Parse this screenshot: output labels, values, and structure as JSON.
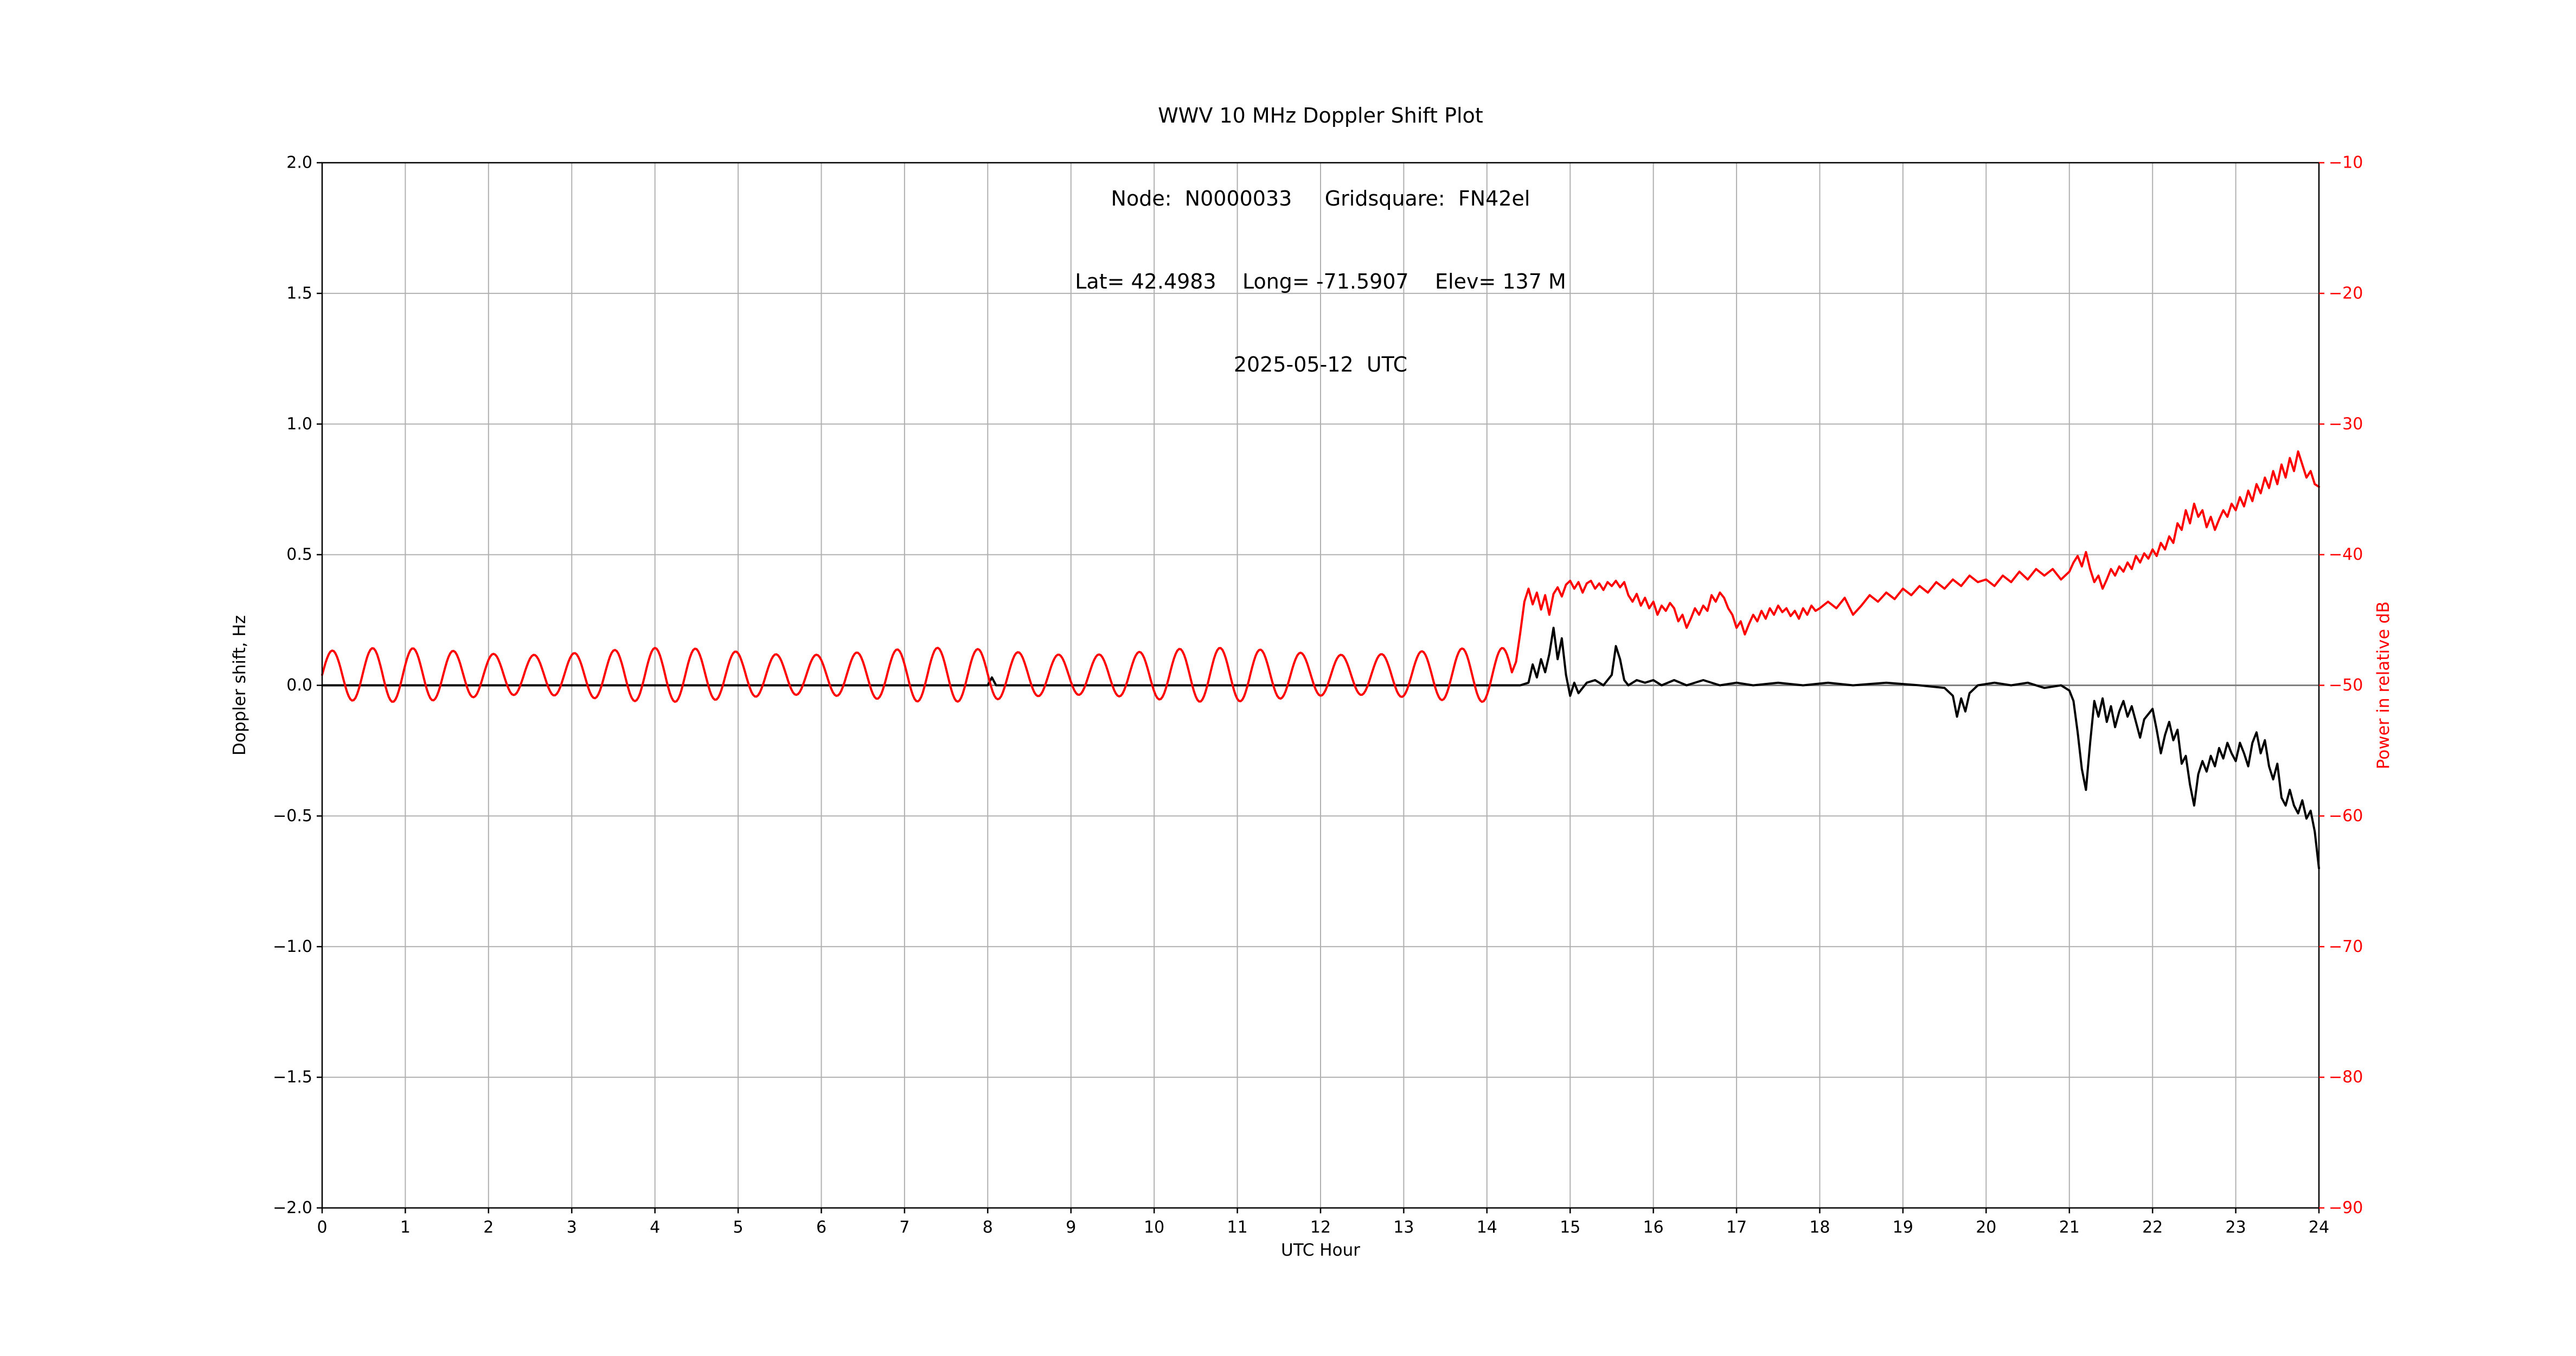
{
  "title_block": {
    "line1": "WWV 10 MHz Doppler Shift Plot",
    "line2": "Node:  N0000033     Gridsquare:  FN42el",
    "line3": "Lat= 42.4983    Long= -71.5907    Elev= 137 M",
    "line4": "2025-05-12  UTC"
  },
  "chart_data": {
    "type": "line",
    "title": "WWV 10 MHz Doppler Shift Plot",
    "subtitle": [
      "Node:  N0000033     Gridsquare:  FN42el",
      "Lat= 42.4983    Long= -71.5907    Elev= 137 M",
      "2025-05-12  UTC"
    ],
    "xlabel": "UTC Hour",
    "xlim": [
      0,
      24
    ],
    "x_ticks": [
      0,
      1,
      2,
      3,
      4,
      5,
      6,
      7,
      8,
      9,
      10,
      11,
      12,
      13,
      14,
      15,
      16,
      17,
      18,
      19,
      20,
      21,
      22,
      23,
      24
    ],
    "x_tick_labels": [
      "0",
      "1",
      "2",
      "3",
      "4",
      "5",
      "6",
      "7",
      "8",
      "9",
      "10",
      "11",
      "12",
      "13",
      "14",
      "15",
      "16",
      "17",
      "18",
      "19",
      "20",
      "21",
      "22",
      "23",
      "24"
    ],
    "grid": true,
    "grid_color": "#b0b0b0",
    "background": "#ffffff",
    "left_axis": {
      "label": "Doppler shift, Hz",
      "lim": [
        -2.0,
        2.0
      ],
      "tick_values": [
        2.0,
        1.5,
        1.0,
        0.5,
        0.0,
        -0.5,
        -1.0,
        -1.5,
        -2.0
      ],
      "tick_labels": [
        "2.0",
        "1.5",
        "1.0",
        "0.5",
        "0.0",
        "−0.5",
        "−1.0",
        "−1.5",
        "−2.0"
      ],
      "color": "#000000"
    },
    "right_axis": {
      "label": "Power in relative dB",
      "lim": [
        -90,
        -10
      ],
      "tick_values": [
        -10,
        -20,
        -30,
        -40,
        -50,
        -60,
        -70,
        -80,
        -90
      ],
      "tick_labels": [
        "−10",
        "−20",
        "−30",
        "−40",
        "−50",
        "−60",
        "−70",
        "−80",
        "−90"
      ],
      "color": "#ff0000"
    },
    "zero_line": {
      "axis": "left",
      "value": 0,
      "color": "#808080"
    },
    "series": [
      {
        "name": "doppler-shift",
        "axis": "left",
        "color": "#000000",
        "points": [
          [
            0,
            0
          ],
          [
            8,
            0
          ],
          [
            8.05,
            0.03
          ],
          [
            8.1,
            0
          ],
          [
            14.4,
            0
          ],
          [
            14.5,
            0.01
          ],
          [
            14.55,
            0.08
          ],
          [
            14.6,
            0.03
          ],
          [
            14.65,
            0.1
          ],
          [
            14.7,
            0.05
          ],
          [
            14.75,
            0.12
          ],
          [
            14.8,
            0.22
          ],
          [
            14.85,
            0.1
          ],
          [
            14.9,
            0.18
          ],
          [
            14.95,
            0.04
          ],
          [
            15,
            -0.04
          ],
          [
            15.05,
            0.01
          ],
          [
            15.1,
            -0.03
          ],
          [
            15.2,
            0.01
          ],
          [
            15.3,
            0.02
          ],
          [
            15.4,
            0
          ],
          [
            15.5,
            0.04
          ],
          [
            15.55,
            0.15
          ],
          [
            15.6,
            0.1
          ],
          [
            15.65,
            0.02
          ],
          [
            15.7,
            0
          ],
          [
            15.8,
            0.02
          ],
          [
            15.9,
            0.01
          ],
          [
            16,
            0.02
          ],
          [
            16.1,
            0
          ],
          [
            16.25,
            0.02
          ],
          [
            16.4,
            0
          ],
          [
            16.6,
            0.02
          ],
          [
            16.8,
            0
          ],
          [
            17,
            0.01
          ],
          [
            17.2,
            0
          ],
          [
            17.5,
            0.01
          ],
          [
            17.8,
            0
          ],
          [
            18.1,
            0.01
          ],
          [
            18.4,
            0
          ],
          [
            18.8,
            0.01
          ],
          [
            19.2,
            0
          ],
          [
            19.5,
            -0.01
          ],
          [
            19.6,
            -0.04
          ],
          [
            19.65,
            -0.12
          ],
          [
            19.7,
            -0.05
          ],
          [
            19.75,
            -0.1
          ],
          [
            19.8,
            -0.03
          ],
          [
            19.9,
            0
          ],
          [
            20.1,
            0.01
          ],
          [
            20.3,
            0
          ],
          [
            20.5,
            0.01
          ],
          [
            20.7,
            -0.01
          ],
          [
            20.9,
            0
          ],
          [
            21,
            -0.02
          ],
          [
            21.05,
            -0.06
          ],
          [
            21.1,
            -0.18
          ],
          [
            21.15,
            -0.32
          ],
          [
            21.2,
            -0.4
          ],
          [
            21.25,
            -0.22
          ],
          [
            21.3,
            -0.06
          ],
          [
            21.35,
            -0.12
          ],
          [
            21.4,
            -0.05
          ],
          [
            21.45,
            -0.14
          ],
          [
            21.5,
            -0.08
          ],
          [
            21.55,
            -0.16
          ],
          [
            21.6,
            -0.1
          ],
          [
            21.65,
            -0.06
          ],
          [
            21.7,
            -0.12
          ],
          [
            21.75,
            -0.08
          ],
          [
            21.8,
            -0.14
          ],
          [
            21.85,
            -0.2
          ],
          [
            21.9,
            -0.13
          ],
          [
            21.95,
            -0.11
          ],
          [
            22,
            -0.09
          ],
          [
            22.05,
            -0.17
          ],
          [
            22.1,
            -0.26
          ],
          [
            22.15,
            -0.19
          ],
          [
            22.2,
            -0.14
          ],
          [
            22.25,
            -0.21
          ],
          [
            22.3,
            -0.17
          ],
          [
            22.35,
            -0.3
          ],
          [
            22.4,
            -0.27
          ],
          [
            22.45,
            -0.38
          ],
          [
            22.5,
            -0.46
          ],
          [
            22.55,
            -0.34
          ],
          [
            22.6,
            -0.29
          ],
          [
            22.65,
            -0.33
          ],
          [
            22.7,
            -0.27
          ],
          [
            22.75,
            -0.31
          ],
          [
            22.8,
            -0.24
          ],
          [
            22.85,
            -0.28
          ],
          [
            22.9,
            -0.22
          ],
          [
            22.95,
            -0.26
          ],
          [
            23,
            -0.29
          ],
          [
            23.05,
            -0.22
          ],
          [
            23.1,
            -0.26
          ],
          [
            23.15,
            -0.31
          ],
          [
            23.2,
            -0.22
          ],
          [
            23.25,
            -0.18
          ],
          [
            23.3,
            -0.26
          ],
          [
            23.35,
            -0.21
          ],
          [
            23.4,
            -0.31
          ],
          [
            23.45,
            -0.36
          ],
          [
            23.5,
            -0.3
          ],
          [
            23.55,
            -0.43
          ],
          [
            23.6,
            -0.46
          ],
          [
            23.65,
            -0.4
          ],
          [
            23.7,
            -0.46
          ],
          [
            23.75,
            -0.49
          ],
          [
            23.8,
            -0.44
          ],
          [
            23.85,
            -0.51
          ],
          [
            23.9,
            -0.48
          ],
          [
            23.95,
            -0.56
          ],
          [
            24,
            -0.7
          ]
        ]
      },
      {
        "name": "power",
        "axis": "right",
        "color": "#ff0000",
        "wave": {
          "x_start": 0,
          "x_end": 14.3,
          "step": 0.02,
          "period": 0.485,
          "base": -49.2,
          "amp": 1.8,
          "amp_mod_period": 3.3,
          "amp_mod_frac": 0.15
        },
        "points": [
          [
            14.35,
            -48.2
          ],
          [
            14.4,
            -46
          ],
          [
            14.45,
            -43.6
          ],
          [
            14.5,
            -42.6
          ],
          [
            14.55,
            -43.8
          ],
          [
            14.6,
            -42.9
          ],
          [
            14.65,
            -44.2
          ],
          [
            14.7,
            -43.1
          ],
          [
            14.75,
            -44.6
          ],
          [
            14.8,
            -43
          ],
          [
            14.85,
            -42.5
          ],
          [
            14.9,
            -43.2
          ],
          [
            14.95,
            -42.3
          ],
          [
            15,
            -42
          ],
          [
            15.05,
            -42.6
          ],
          [
            15.1,
            -42.1
          ],
          [
            15.15,
            -42.9
          ],
          [
            15.2,
            -42.2
          ],
          [
            15.25,
            -42
          ],
          [
            15.3,
            -42.6
          ],
          [
            15.35,
            -42.2
          ],
          [
            15.4,
            -42.7
          ],
          [
            15.45,
            -42.1
          ],
          [
            15.5,
            -42.4
          ],
          [
            15.55,
            -42
          ],
          [
            15.6,
            -42.5
          ],
          [
            15.65,
            -42.1
          ],
          [
            15.7,
            -43.1
          ],
          [
            15.75,
            -43.6
          ],
          [
            15.8,
            -43
          ],
          [
            15.85,
            -43.9
          ],
          [
            15.9,
            -43.3
          ],
          [
            15.95,
            -44.1
          ],
          [
            16,
            -43.6
          ],
          [
            16.05,
            -44.6
          ],
          [
            16.1,
            -43.9
          ],
          [
            16.15,
            -44.3
          ],
          [
            16.2,
            -43.7
          ],
          [
            16.25,
            -44.1
          ],
          [
            16.3,
            -45.1
          ],
          [
            16.35,
            -44.6
          ],
          [
            16.4,
            -45.6
          ],
          [
            16.45,
            -44.9
          ],
          [
            16.5,
            -44.1
          ],
          [
            16.55,
            -44.6
          ],
          [
            16.6,
            -43.9
          ],
          [
            16.65,
            -44.3
          ],
          [
            16.7,
            -43.1
          ],
          [
            16.75,
            -43.6
          ],
          [
            16.8,
            -42.9
          ],
          [
            16.85,
            -43.3
          ],
          [
            16.9,
            -44.1
          ],
          [
            16.95,
            -44.6
          ],
          [
            17,
            -45.6
          ],
          [
            17.05,
            -45.1
          ],
          [
            17.1,
            -46.1
          ],
          [
            17.15,
            -45.3
          ],
          [
            17.2,
            -44.6
          ],
          [
            17.25,
            -45.1
          ],
          [
            17.3,
            -44.3
          ],
          [
            17.35,
            -44.9
          ],
          [
            17.4,
            -44.1
          ],
          [
            17.45,
            -44.6
          ],
          [
            17.5,
            -43.9
          ],
          [
            17.55,
            -44.4
          ],
          [
            17.6,
            -44.1
          ],
          [
            17.65,
            -44.7
          ],
          [
            17.7,
            -44.3
          ],
          [
            17.75,
            -44.9
          ],
          [
            17.8,
            -44.1
          ],
          [
            17.85,
            -44.6
          ],
          [
            17.9,
            -43.9
          ],
          [
            17.95,
            -44.3
          ],
          [
            18,
            -44.1
          ],
          [
            18.1,
            -43.6
          ],
          [
            18.2,
            -44.1
          ],
          [
            18.3,
            -43.3
          ],
          [
            18.4,
            -44.6
          ],
          [
            18.5,
            -43.9
          ],
          [
            18.6,
            -43.1
          ],
          [
            18.7,
            -43.6
          ],
          [
            18.8,
            -42.9
          ],
          [
            18.9,
            -43.4
          ],
          [
            19,
            -42.6
          ],
          [
            19.1,
            -43.1
          ],
          [
            19.2,
            -42.4
          ],
          [
            19.3,
            -42.9
          ],
          [
            19.4,
            -42.1
          ],
          [
            19.5,
            -42.6
          ],
          [
            19.6,
            -41.9
          ],
          [
            19.7,
            -42.4
          ],
          [
            19.8,
            -41.6
          ],
          [
            19.9,
            -42.1
          ],
          [
            20,
            -41.9
          ],
          [
            20.1,
            -42.4
          ],
          [
            20.2,
            -41.6
          ],
          [
            20.3,
            -42.1
          ],
          [
            20.4,
            -41.3
          ],
          [
            20.5,
            -41.9
          ],
          [
            20.6,
            -41.1
          ],
          [
            20.7,
            -41.6
          ],
          [
            20.8,
            -41.1
          ],
          [
            20.9,
            -41.9
          ],
          [
            21,
            -41.3
          ],
          [
            21.05,
            -40.6
          ],
          [
            21.1,
            -40.1
          ],
          [
            21.15,
            -40.9
          ],
          [
            21.2,
            -39.8
          ],
          [
            21.25,
            -41.1
          ],
          [
            21.3,
            -42.1
          ],
          [
            21.35,
            -41.6
          ],
          [
            21.4,
            -42.6
          ],
          [
            21.45,
            -41.9
          ],
          [
            21.5,
            -41.1
          ],
          [
            21.55,
            -41.6
          ],
          [
            21.6,
            -40.9
          ],
          [
            21.65,
            -41.3
          ],
          [
            21.7,
            -40.6
          ],
          [
            21.75,
            -41.1
          ],
          [
            21.8,
            -40.1
          ],
          [
            21.85,
            -40.6
          ],
          [
            21.9,
            -39.9
          ],
          [
            21.95,
            -40.3
          ],
          [
            22,
            -39.6
          ],
          [
            22.05,
            -40.1
          ],
          [
            22.1,
            -39.1
          ],
          [
            22.15,
            -39.6
          ],
          [
            22.2,
            -38.6
          ],
          [
            22.25,
            -39.1
          ],
          [
            22.3,
            -37.6
          ],
          [
            22.35,
            -38.1
          ],
          [
            22.4,
            -36.6
          ],
          [
            22.45,
            -37.6
          ],
          [
            22.5,
            -36.1
          ],
          [
            22.55,
            -37.1
          ],
          [
            22.6,
            -36.6
          ],
          [
            22.65,
            -37.9
          ],
          [
            22.7,
            -37.1
          ],
          [
            22.75,
            -38.1
          ],
          [
            22.8,
            -37.3
          ],
          [
            22.85,
            -36.6
          ],
          [
            22.9,
            -37.1
          ],
          [
            22.95,
            -36.1
          ],
          [
            23,
            -36.6
          ],
          [
            23.05,
            -35.6
          ],
          [
            23.1,
            -36.3
          ],
          [
            23.15,
            -35.1
          ],
          [
            23.2,
            -35.9
          ],
          [
            23.25,
            -34.6
          ],
          [
            23.3,
            -35.3
          ],
          [
            23.35,
            -34.1
          ],
          [
            23.4,
            -34.9
          ],
          [
            23.45,
            -33.6
          ],
          [
            23.5,
            -34.6
          ],
          [
            23.55,
            -33.1
          ],
          [
            23.6,
            -34.1
          ],
          [
            23.65,
            -32.6
          ],
          [
            23.7,
            -33.6
          ],
          [
            23.75,
            -32.1
          ],
          [
            23.8,
            -33.1
          ],
          [
            23.85,
            -34.1
          ],
          [
            23.9,
            -33.6
          ],
          [
            23.95,
            -34.6
          ],
          [
            24,
            -34.8
          ]
        ]
      }
    ]
  }
}
